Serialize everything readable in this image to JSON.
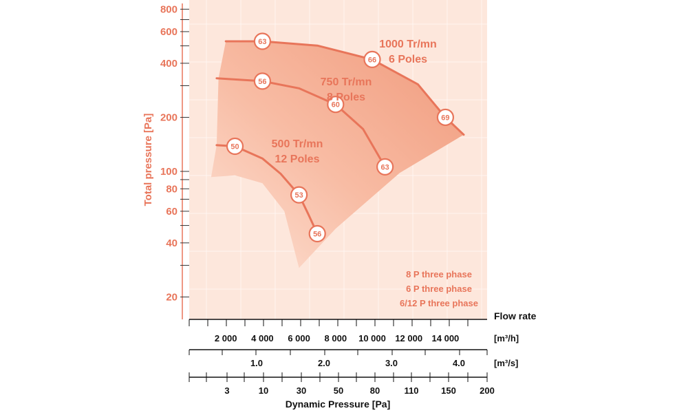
{
  "chart_data": {
    "type": "line",
    "ylabel": "Total pressure [Pa]",
    "yscale": "log",
    "ylim": [
      15,
      900
    ],
    "yticks_labeled": [
      20,
      40,
      60,
      80,
      100,
      200,
      400,
      600,
      800
    ],
    "yticks_minor": [
      30,
      50,
      70,
      90,
      300,
      500,
      700
    ],
    "x_unit": "m³/h",
    "xlim": [
      0,
      16000
    ],
    "series": [
      {
        "name": "500 Tr/mn 12 Poles",
        "label_lines": [
          "500 Tr/mn",
          "12 Poles"
        ],
        "x": [
          1500,
          2500,
          4000,
          5000,
          6000,
          6500,
          7000
        ],
        "y": [
          140,
          138,
          118,
          97,
          74,
          58,
          45
        ],
        "markers": [
          {
            "x": 2500,
            "y": 138,
            "label": "50"
          },
          {
            "x": 6000,
            "y": 74,
            "label": "53"
          },
          {
            "x": 7000,
            "y": 45,
            "label": "56"
          }
        ]
      },
      {
        "name": "750 Tr/mn 8 Poles",
        "label_lines": [
          "750 Tr/mn",
          "8 Poles"
        ],
        "x": [
          1500,
          4000,
          6000,
          8000,
          9500,
          10700
        ],
        "y": [
          330,
          318,
          290,
          236,
          172,
          106
        ],
        "markers": [
          {
            "x": 4000,
            "y": 318,
            "label": "56"
          },
          {
            "x": 8000,
            "y": 236,
            "label": "60"
          },
          {
            "x": 10700,
            "y": 106,
            "label": "63"
          }
        ]
      },
      {
        "name": "1000 Tr/mn 6 Poles",
        "label_lines": [
          "1000 Tr/mn",
          "6 Poles"
        ],
        "x": [
          2000,
          4000,
          7000,
          10000,
          12500,
          14000,
          15000
        ],
        "y": [
          530,
          530,
          502,
          420,
          305,
          200,
          160
        ],
        "markers": [
          {
            "x": 4000,
            "y": 530,
            "label": "63"
          },
          {
            "x": 10000,
            "y": 420,
            "label": "66"
          },
          {
            "x": 14000,
            "y": 200,
            "label": "69"
          }
        ]
      }
    ],
    "operating_region": "shaded",
    "notes": [
      "8 P three phase",
      "6 P three phase",
      "6/12 P three phase"
    ],
    "scales": [
      {
        "name": "Flow rate",
        "unit": "[m³/h]",
        "ticks": [
          {
            "value": 2000,
            "label": "2 000"
          },
          {
            "value": 4000,
            "label": "4 000"
          },
          {
            "value": 6000,
            "label": "6 000"
          },
          {
            "value": 8000,
            "label": "8 000"
          },
          {
            "value": 10000,
            "label": "10 000"
          },
          {
            "value": 12000,
            "label": "12 000"
          },
          {
            "value": 14000,
            "label": "14 000"
          }
        ]
      },
      {
        "unit": "[m³/s]",
        "ticks": [
          {
            "value": 1.0,
            "label": "1.0"
          },
          {
            "value": 2.0,
            "label": "2.0"
          },
          {
            "value": 3.0,
            "label": "3.0"
          },
          {
            "value": 4.0,
            "label": "4.0"
          }
        ]
      },
      {
        "name": "Dynamic Pressure [Pa]",
        "ticks": [
          {
            "value": 3,
            "label": "3"
          },
          {
            "value": 10,
            "label": "10"
          },
          {
            "value": 30,
            "label": "30"
          },
          {
            "value": 50,
            "label": "50"
          },
          {
            "value": 80,
            "label": "80"
          },
          {
            "value": 110,
            "label": "110"
          },
          {
            "value": 150,
            "label": "150"
          },
          {
            "value": 200,
            "label": "200"
          }
        ]
      }
    ],
    "grid": true
  },
  "colors": {
    "accent": "#e8755a",
    "background": "#fde7dc",
    "region_light": "#fbd0be",
    "region_dark": "#f2a286"
  }
}
